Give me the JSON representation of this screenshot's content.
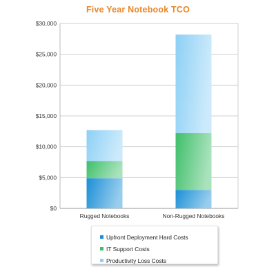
{
  "chart_data": {
    "type": "bar",
    "stacked": true,
    "title": "Five Year Notebook TCO",
    "title_color": "#e8872a",
    "categories": [
      "Rugged Notebooks",
      "Non-Rugged Notebooks"
    ],
    "series": [
      {
        "name": "Upfront Deployment Hard Costs",
        "values": [
          4900,
          3000
        ],
        "color": "#1b8fd6"
      },
      {
        "name": "IT Support Costs",
        "values": [
          2800,
          9200
        ],
        "color": "#3fbf6a"
      },
      {
        "name": "Productivity Loss Costs",
        "values": [
          5000,
          16000
        ],
        "color": "#8dd0f5"
      }
    ],
    "ylim": [
      0,
      30000
    ],
    "yticks": [
      0,
      5000,
      10000,
      15000,
      20000,
      25000,
      30000
    ],
    "ytick_labels": [
      "$0",
      "$5,000",
      "$10,000",
      "$15,000",
      "$20,000",
      "$25,000",
      "$30,000"
    ],
    "xlabel": "",
    "ylabel": "",
    "grid": true,
    "legend_position": "bottom"
  }
}
